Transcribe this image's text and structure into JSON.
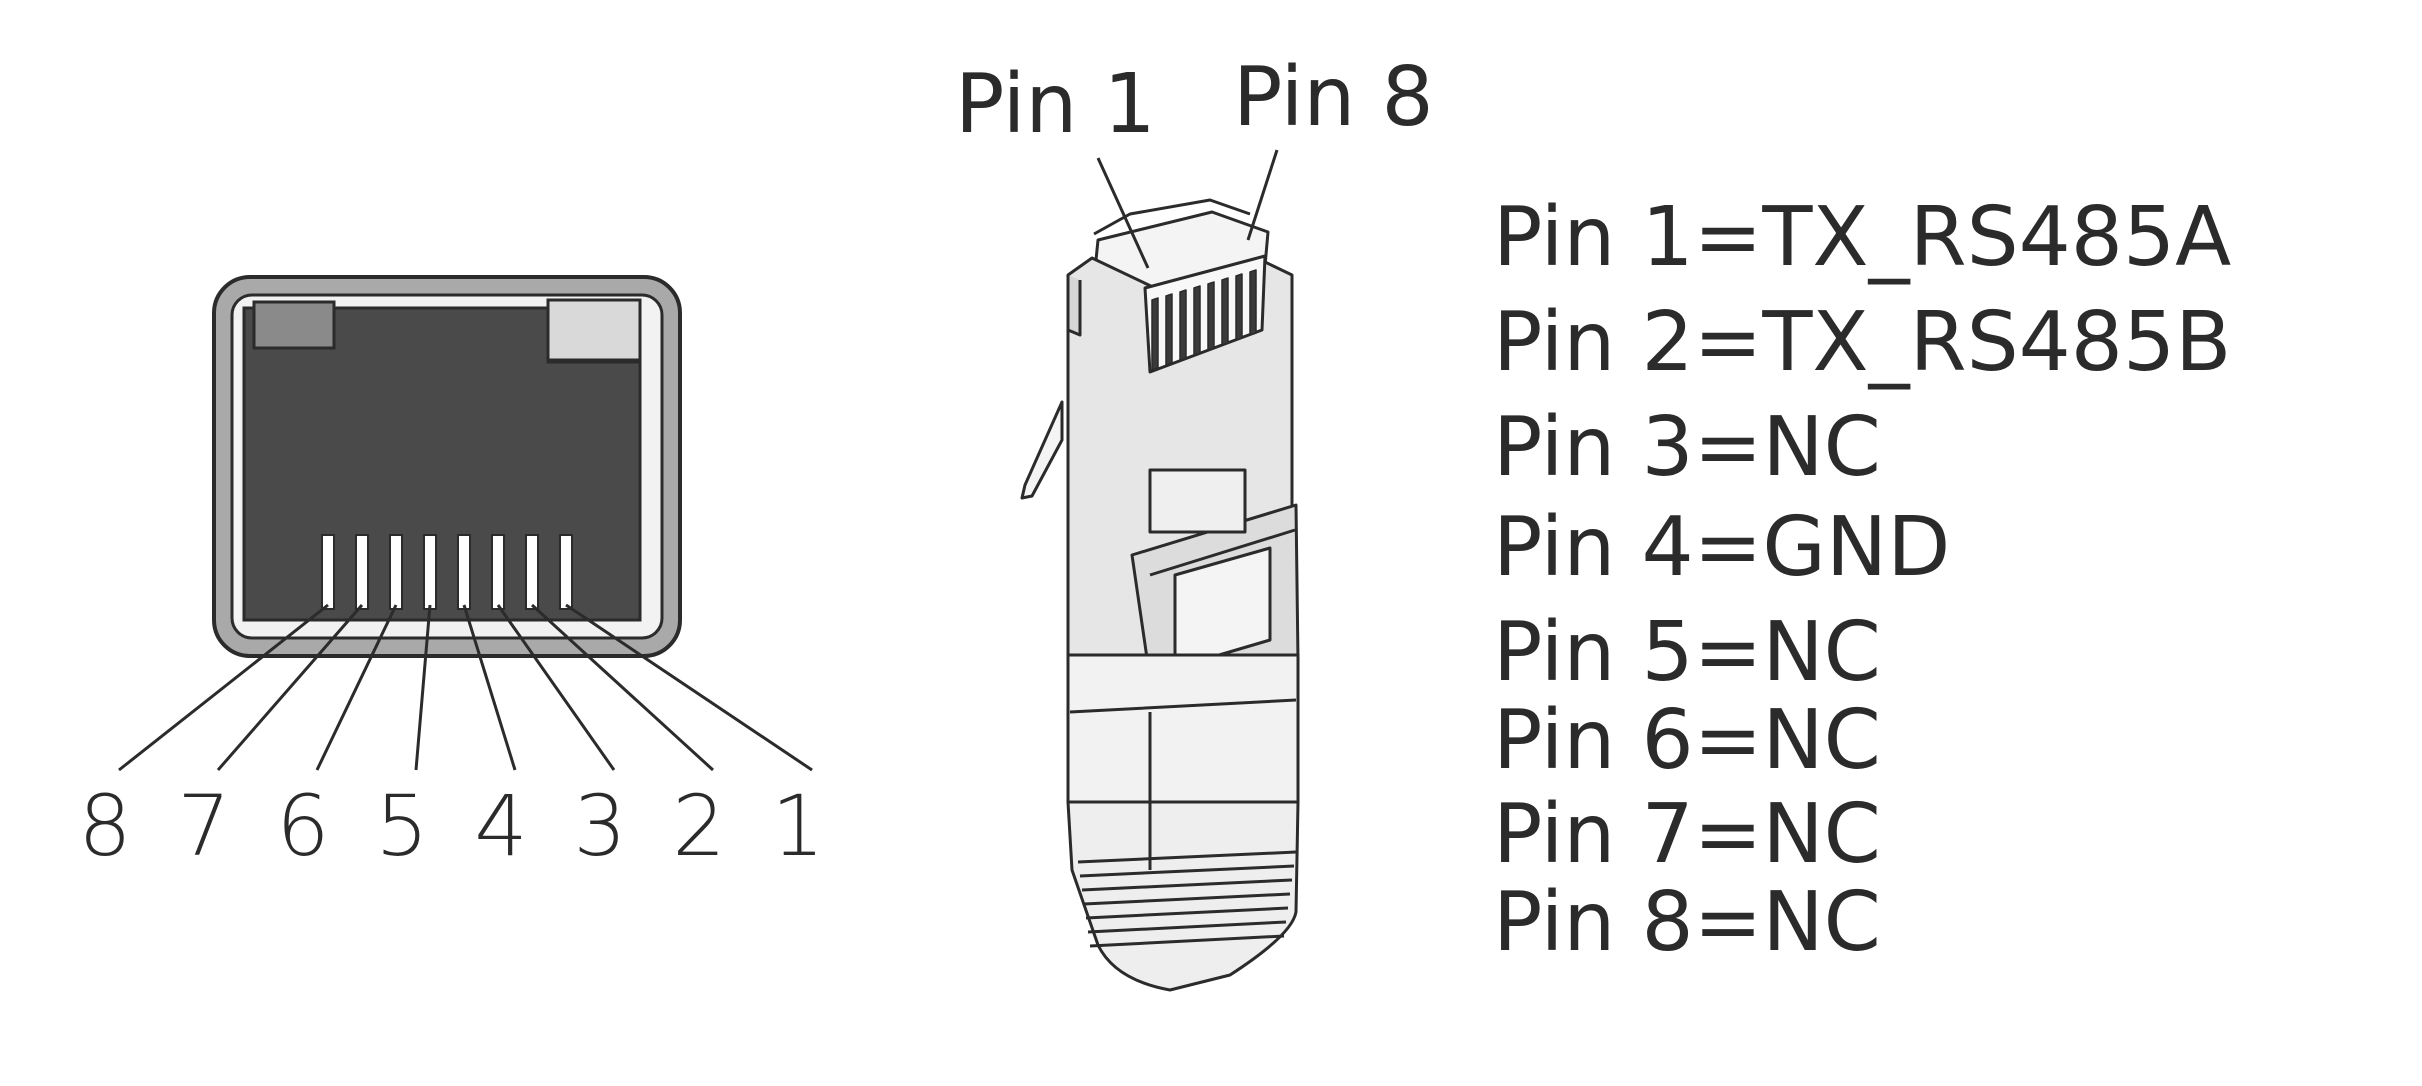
{
  "colors": {
    "ink": "#2b2b2b",
    "jack_frame": "#a9a9a9",
    "jack_cavity": "#4a4a4a",
    "jack_tab": "#8a8a8a",
    "jack_tab_light": "#d9d9d9",
    "plug_body": "#e6e6e6",
    "plug_light": "#f4f4f4",
    "background": "#ffffff"
  },
  "jack": {
    "pin_numbers": [
      "8",
      "7",
      "6",
      "5",
      "4",
      "3",
      "2",
      "1"
    ]
  },
  "plug": {
    "label_pin1": "Pin 1",
    "label_pin8": "Pin 8"
  },
  "pinout": [
    "Pin 1=TX_RS485A",
    "Pin 2=TX_RS485B",
    "Pin 3=NC",
    "Pin 4=GND",
    "Pin 5=NC",
    "Pin 6=NC",
    "Pin 7=NC",
    "Pin 8=NC"
  ]
}
